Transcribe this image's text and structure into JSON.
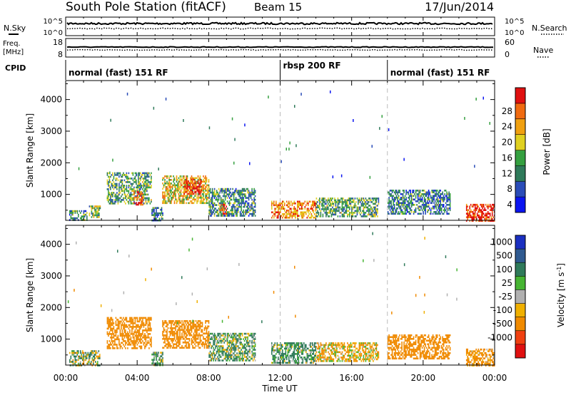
{
  "header": {
    "station": "South Pole Station (fitACF)",
    "beam": "Beam 15",
    "date": "17/Jun/2014"
  },
  "strips": {
    "nsky_label": "N.Sky",
    "nsearch_label": "N.Search",
    "freq_label_1": "Freq.",
    "freq_label_2": "[MHz]",
    "nave_label": "Nave",
    "cpid_label": "CPID",
    "noise_ticks_left": [
      "10^5",
      "10^0"
    ],
    "noise_ticks_right": [
      "10^5",
      "10^0"
    ],
    "freq_ticks": [
      "18",
      "8"
    ],
    "nave_ticks": [
      "60",
      "0"
    ]
  },
  "cpid_segments": [
    {
      "label": "normal (fast) 151 RF",
      "start_hour": 0,
      "end_hour": 12
    },
    {
      "label": "rbsp 200 RF",
      "start_hour": 12,
      "end_hour": 18
    },
    {
      "label": "normal (fast) 151 RF",
      "start_hour": 18,
      "end_hour": 24
    }
  ],
  "axes": {
    "xlabel": "Time UT",
    "ylabel": "Slant Range [km]",
    "x_ticks": [
      "00:00",
      "04:00",
      "08:00",
      "12:00",
      "16:00",
      "20:00",
      "00:00"
    ],
    "y_ticks": [
      "1000",
      "2000",
      "3000",
      "4000"
    ]
  },
  "colorbars": {
    "power": {
      "label": "Power [dB]",
      "ticks": [
        "4",
        "8",
        "12",
        "16",
        "20",
        "24",
        "28"
      ],
      "colors": [
        "#0a14f0",
        "#2a4cb8",
        "#2f7a5a",
        "#35a040",
        "#e0d020",
        "#f0a010",
        "#f06a10",
        "#e01010"
      ]
    },
    "velocity": {
      "label_main": "Velocity [m s",
      "label_sup": "-1",
      "label_end": "]",
      "ticks": [
        "1000",
        "500",
        "100",
        "25",
        "-25",
        "-100",
        "-500",
        "-1000"
      ],
      "colors": [
        "#1a2fc0",
        "#2f5a90",
        "#2f7a5a",
        "#46b432",
        "#b0b0b0",
        "#f0b000",
        "#f08a00",
        "#f04010",
        "#e01010"
      ]
    }
  },
  "chart_data": [
    {
      "type": "heatmap",
      "title": "",
      "variable": "Power",
      "xlabel": "Time UT",
      "ylabel": "Slant Range [km]",
      "xlim_hours": [
        0,
        24
      ],
      "ylim_km": [
        180,
        4600
      ],
      "value_range": [
        0,
        30
      ],
      "units": "dB",
      "echo_regions": [
        {
          "start_hour": 0.2,
          "end_hour": 1.2,
          "min_km": 180,
          "max_km": 500,
          "power_db": 10
        },
        {
          "start_hour": 1.3,
          "end_hour": 1.9,
          "min_km": 300,
          "max_km": 650,
          "power_db": 14
        },
        {
          "start_hour": 2.3,
          "end_hour": 4.8,
          "min_km": 700,
          "max_km": 1700,
          "power_db": 12
        },
        {
          "start_hour": 3.8,
          "end_hour": 4.3,
          "min_km": 700,
          "max_km": 1100,
          "power_db": 26
        },
        {
          "start_hour": 4.8,
          "end_hour": 5.4,
          "min_km": 180,
          "max_km": 600,
          "power_db": 9
        },
        {
          "start_hour": 5.4,
          "end_hour": 8.0,
          "min_km": 700,
          "max_km": 1600,
          "power_db": 18
        },
        {
          "start_hour": 6.6,
          "end_hour": 7.6,
          "min_km": 1000,
          "max_km": 1500,
          "power_db": 26
        },
        {
          "start_hour": 8.0,
          "end_hour": 10.6,
          "min_km": 300,
          "max_km": 1200,
          "power_db": 10
        },
        {
          "start_hour": 8.6,
          "end_hour": 9.0,
          "min_km": 400,
          "max_km": 700,
          "power_db": 24
        },
        {
          "start_hour": 11.5,
          "end_hour": 14.0,
          "min_km": 250,
          "max_km": 800,
          "power_db": 22
        },
        {
          "start_hour": 14.0,
          "end_hour": 17.5,
          "min_km": 300,
          "max_km": 900,
          "power_db": 12
        },
        {
          "start_hour": 18.0,
          "end_hour": 21.5,
          "min_km": 400,
          "max_km": 1150,
          "power_db": 9
        },
        {
          "start_hour": 22.4,
          "end_hour": 24.0,
          "min_km": 180,
          "max_km": 700,
          "power_db": 28
        }
      ]
    },
    {
      "type": "heatmap",
      "title": "",
      "variable": "Velocity",
      "xlabel": "Time UT",
      "ylabel": "Slant Range [km]",
      "xlim_hours": [
        0,
        24
      ],
      "ylim_km": [
        180,
        4600
      ],
      "value_range": [
        -1000,
        1000
      ],
      "units": "m s-1",
      "echo_regions": [
        {
          "start_hour": 0.2,
          "end_hour": 1.9,
          "min_km": 180,
          "max_km": 650,
          "velocity": 50
        },
        {
          "start_hour": 2.3,
          "end_hour": 4.8,
          "min_km": 700,
          "max_km": 1700,
          "velocity": -300
        },
        {
          "start_hour": 4.8,
          "end_hour": 5.4,
          "min_km": 180,
          "max_km": 600,
          "velocity": 100
        },
        {
          "start_hour": 5.4,
          "end_hour": 8.0,
          "min_km": 700,
          "max_km": 1600,
          "velocity": -300
        },
        {
          "start_hour": 8.0,
          "end_hour": 10.6,
          "min_km": 300,
          "max_km": 1200,
          "velocity": 100
        },
        {
          "start_hour": 11.5,
          "end_hour": 14.0,
          "min_km": 250,
          "max_km": 900,
          "velocity": 150
        },
        {
          "start_hour": 14.0,
          "end_hour": 17.5,
          "min_km": 300,
          "max_km": 900,
          "velocity": -100
        },
        {
          "start_hour": 18.0,
          "end_hour": 21.5,
          "min_km": 400,
          "max_km": 1150,
          "velocity": -300
        },
        {
          "start_hour": 22.4,
          "end_hour": 24.0,
          "min_km": 180,
          "max_km": 700,
          "velocity": -200
        }
      ]
    }
  ]
}
